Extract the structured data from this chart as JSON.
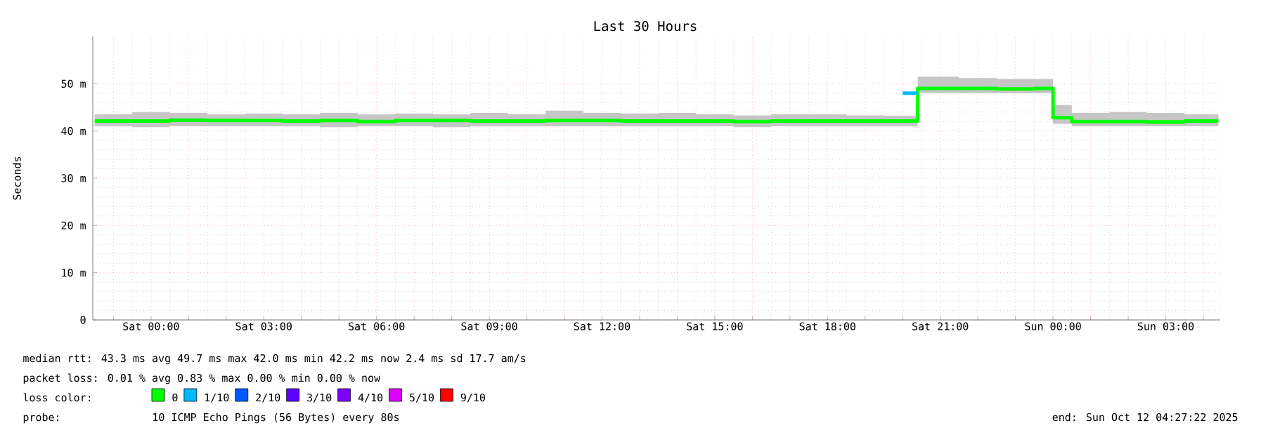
{
  "chart_data": {
    "type": "step",
    "title": "Last 30 Hours",
    "ylabel": "Seconds",
    "xlim": [
      "2025-10-10T22:27",
      "2025-10-12T04:27"
    ],
    "ylim": [
      0,
      60
    ],
    "xticks": [
      {
        "value": "2025-10-10T23:00",
        "label": null
      },
      {
        "value": "2025-10-11T00:00",
        "label": "Sat 00:00"
      },
      {
        "value": "2025-10-11T01:00",
        "label": null
      },
      {
        "value": "2025-10-11T02:00",
        "label": null
      },
      {
        "value": "2025-10-11T03:00",
        "label": "Sat 03:00"
      },
      {
        "value": "2025-10-11T04:00",
        "label": null
      },
      {
        "value": "2025-10-11T05:00",
        "label": null
      },
      {
        "value": "2025-10-11T06:00",
        "label": "Sat 06:00"
      },
      {
        "value": "2025-10-11T07:00",
        "label": null
      },
      {
        "value": "2025-10-11T08:00",
        "label": null
      },
      {
        "value": "2025-10-11T09:00",
        "label": "Sat 09:00"
      },
      {
        "value": "2025-10-11T10:00",
        "label": null
      },
      {
        "value": "2025-10-11T11:00",
        "label": null
      },
      {
        "value": "2025-10-11T12:00",
        "label": "Sat 12:00"
      },
      {
        "value": "2025-10-11T13:00",
        "label": null
      },
      {
        "value": "2025-10-11T14:00",
        "label": null
      },
      {
        "value": "2025-10-11T15:00",
        "label": "Sat 15:00"
      },
      {
        "value": "2025-10-11T16:00",
        "label": null
      },
      {
        "value": "2025-10-11T17:00",
        "label": null
      },
      {
        "value": "2025-10-11T18:00",
        "label": "Sat 18:00"
      },
      {
        "value": "2025-10-11T19:00",
        "label": null
      },
      {
        "value": "2025-10-11T20:00",
        "label": null
      },
      {
        "value": "2025-10-11T21:00",
        "label": "Sat 21:00"
      },
      {
        "value": "2025-10-11T22:00",
        "label": null
      },
      {
        "value": "2025-10-11T23:00",
        "label": null
      },
      {
        "value": "2025-10-12T00:00",
        "label": "Sun 00:00"
      },
      {
        "value": "2025-10-12T01:00",
        "label": null
      },
      {
        "value": "2025-10-12T02:00",
        "label": null
      },
      {
        "value": "2025-10-12T03:00",
        "label": "Sun 03:00"
      },
      {
        "value": "2025-10-12T04:00",
        "label": null
      }
    ],
    "yticks": [
      {
        "value": 0,
        "label": "0"
      },
      {
        "value": 10,
        "label": "10 m"
      },
      {
        "value": 20,
        "label": "20 m"
      },
      {
        "value": 30,
        "label": "30 m"
      },
      {
        "value": 40,
        "label": "40 m"
      },
      {
        "value": 50,
        "label": "50 m"
      }
    ],
    "grid": true,
    "legend": "bottom",
    "series": [
      {
        "name": "0",
        "color": "#00ff00",
        "x": [
          "2025-10-10T22:30",
          "2025-10-10T23:30",
          "2025-10-11T00:30",
          "2025-10-11T01:30",
          "2025-10-11T02:30",
          "2025-10-11T03:30",
          "2025-10-11T04:30",
          "2025-10-11T05:30",
          "2025-10-11T06:30",
          "2025-10-11T07:30",
          "2025-10-11T08:30",
          "2025-10-11T09:30",
          "2025-10-11T10:30",
          "2025-10-11T11:30",
          "2025-10-11T12:30",
          "2025-10-11T13:30",
          "2025-10-11T14:30",
          "2025-10-11T15:30",
          "2025-10-11T16:30",
          "2025-10-11T17:30",
          "2025-10-11T18:30",
          "2025-10-11T19:30",
          "2025-10-11T20:24",
          "2025-10-11T21:30",
          "2025-10-11T22:30",
          "2025-10-11T23:30",
          "2025-10-12T00:00",
          "2025-10-12T00:30",
          "2025-10-12T01:30",
          "2025-10-12T02:30",
          "2025-10-12T03:30",
          "2025-10-12T04:24"
        ],
        "values": [
          42.1,
          42.1,
          42.3,
          42.2,
          42.2,
          42.1,
          42.2,
          42.0,
          42.2,
          42.2,
          42.1,
          42.1,
          42.2,
          42.2,
          42.1,
          42.1,
          42.1,
          42.0,
          42.1,
          42.1,
          42.1,
          42.1,
          49.0,
          49.0,
          48.9,
          49.0,
          42.8,
          42.0,
          42.0,
          41.9,
          42.1,
          42.1
        ],
        "lower": [
          41.0,
          40.8,
          41.0,
          41.0,
          41.0,
          41.0,
          40.8,
          41.0,
          41.0,
          40.8,
          41.0,
          41.0,
          41.0,
          41.0,
          41.0,
          41.0,
          41.0,
          40.8,
          41.0,
          41.0,
          41.0,
          41.0,
          48.0,
          48.0,
          48.0,
          48.0,
          41.5,
          41.0,
          41.0,
          41.0,
          41.0,
          41.0
        ],
        "upper": [
          43.5,
          44.0,
          43.8,
          43.5,
          43.7,
          43.5,
          43.8,
          43.5,
          43.7,
          43.5,
          43.8,
          43.5,
          44.3,
          43.8,
          43.7,
          43.8,
          43.5,
          43.3,
          43.5,
          43.5,
          43.3,
          43.2,
          51.5,
          51.2,
          51.0,
          51.0,
          45.5,
          43.8,
          44.0,
          43.8,
          43.5,
          43.3
        ]
      },
      {
        "name": "1/10",
        "color": "#00b8ff",
        "x": [
          "2025-10-11T20:00",
          "2025-10-11T20:24"
        ],
        "values": [
          48.0,
          48.0
        ]
      },
      {
        "name": "2/10",
        "color": "#0059ff",
        "values": [
          null
        ]
      },
      {
        "name": "3/10",
        "color": "#5e00ff",
        "values": [
          null
        ]
      },
      {
        "name": "4/10",
        "color": "#7e00ff",
        "values": [
          null
        ]
      },
      {
        "name": "5/10",
        "color": "#dd00ff",
        "values": [
          null
        ]
      },
      {
        "name": "9/10",
        "color": "#ff0000",
        "values": [
          null
        ]
      }
    ],
    "annotations": [
      "median rtt: 43.3 ms avg 49.7 ms max 42.0 ms min 42.2 ms now 2.4 ms sd 17.7 am/s",
      "packet loss: 0.01 % avg 0.83 % max 0.00 % min 0.00 % now",
      "loss color:",
      "probe:",
      "10 ICMP Echo Pings (56 Bytes) every 80s",
      "end: Sun Oct 12 04:27:22 2025"
    ]
  }
}
